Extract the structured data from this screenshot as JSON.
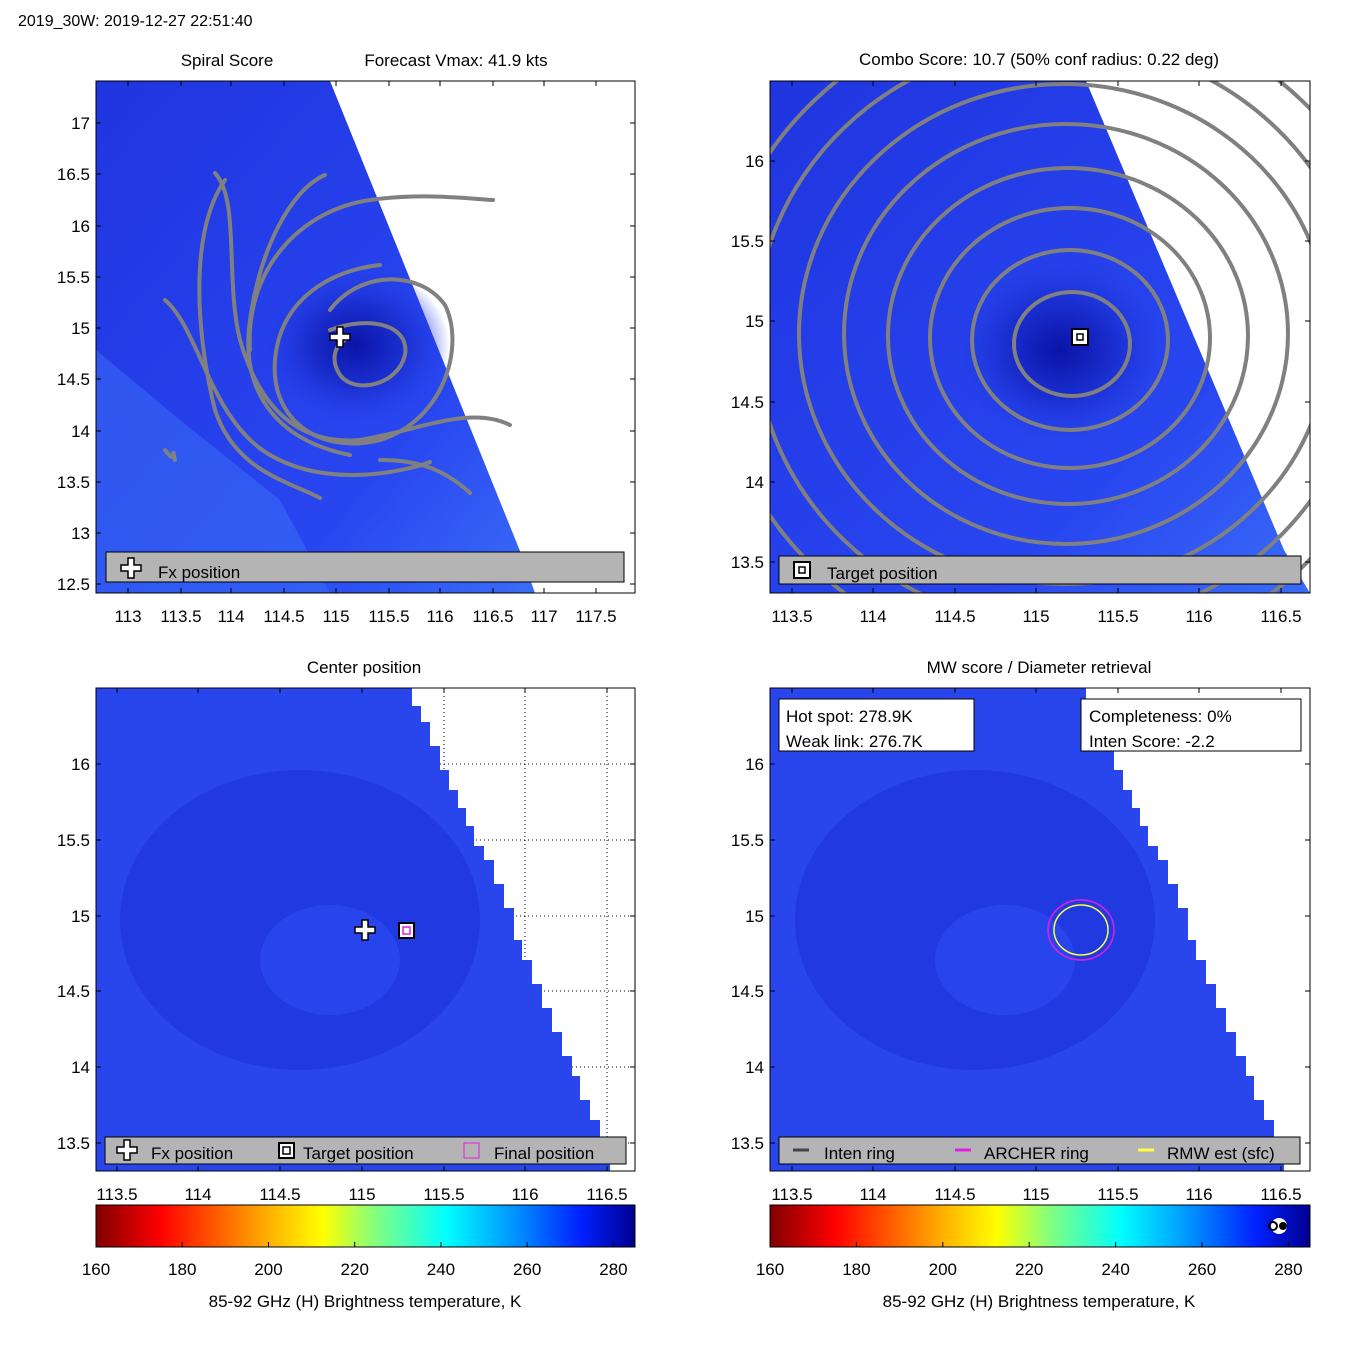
{
  "header": {
    "title": "2019_30W: 2019-12-27 22:51:40"
  },
  "panels": {
    "spiral": {
      "title_left": "Spiral Score",
      "title_right": "Forecast Vmax: 41.9 kts",
      "xticks": [
        "113",
        "113.5",
        "114",
        "114.5",
        "115",
        "115.5",
        "116",
        "116.5",
        "117",
        "117.5"
      ],
      "yticks": [
        "17",
        "16.5",
        "16",
        "15.5",
        "15",
        "14.5",
        "14",
        "13.5",
        "13",
        "12.5"
      ],
      "legend": [
        "Fx position"
      ]
    },
    "combo": {
      "title": "Combo Score: 10.7  (50% conf radius: 0.22 deg)",
      "xticks": [
        "113.5",
        "114",
        "114.5",
        "115",
        "115.5",
        "116",
        "116.5"
      ],
      "yticks": [
        "16",
        "15.5",
        "15",
        "14.5",
        "14",
        "13.5"
      ],
      "legend": [
        "Target position"
      ]
    },
    "center": {
      "title": "Center position",
      "xticks": [
        "113.5",
        "114",
        "114.5",
        "115",
        "115.5",
        "116",
        "116.5"
      ],
      "yticks": [
        "16",
        "15.5",
        "15",
        "14.5",
        "14",
        "13.5"
      ],
      "legend": [
        "Fx position",
        "Target position",
        "Final position"
      ]
    },
    "mw": {
      "title": "MW score / Diameter retrieval",
      "xticks": [
        "113.5",
        "114",
        "114.5",
        "115",
        "115.5",
        "116",
        "116.5"
      ],
      "yticks": [
        "16",
        "15.5",
        "15",
        "14.5",
        "14",
        "13.5"
      ],
      "hot_spot": "Hot spot: 278.9K",
      "weak_link": "Weak link: 276.7K",
      "completeness": "Completeness: 0%",
      "inten_score": "Inten Score: -2.2",
      "legend": [
        "Inten ring",
        "ARCHER ring",
        "RMW est (sfc)"
      ]
    }
  },
  "colorbar": {
    "ticks": [
      "160",
      "180",
      "200",
      "220",
      "240",
      "260",
      "280"
    ],
    "label": "85-92 GHz (H) Brightness temperature, K",
    "range": [
      160,
      285
    ]
  },
  "chart_data": [
    {
      "type": "heatmap",
      "title": "Spiral Score",
      "subtitle": "Forecast Vmax: 41.9 kts",
      "xlim": [
        112.7,
        117.9
      ],
      "ylim": [
        12.4,
        17.4
      ],
      "fx_position": [
        115.02,
        14.92
      ],
      "legend": [
        "Fx position"
      ]
    },
    {
      "type": "heatmap",
      "title": "Combo Score: 10.7  (50% conf radius: 0.22 deg)",
      "xlim": [
        113.35,
        116.65
      ],
      "ylim": [
        13.32,
        16.52
      ],
      "target_position": [
        115.27,
        14.9
      ],
      "legend": [
        "Target position"
      ]
    },
    {
      "type": "heatmap",
      "title": "Center position",
      "xlim": [
        113.35,
        116.65
      ],
      "ylim": [
        13.32,
        16.52
      ],
      "fx_position": [
        115.02,
        14.92
      ],
      "target_position": [
        115.27,
        14.9
      ],
      "final_position": [
        115.27,
        14.9
      ],
      "legend": [
        "Fx position",
        "Target position",
        "Final position"
      ]
    },
    {
      "type": "heatmap",
      "title": "MW score / Diameter retrieval",
      "xlim": [
        113.35,
        116.65
      ],
      "ylim": [
        13.32,
        16.52
      ],
      "hot_spot_K": 278.9,
      "weak_link_K": 276.7,
      "completeness_pct": 0,
      "inten_score": -2.2,
      "legend": [
        "Inten ring",
        "ARCHER ring",
        "RMW est (sfc)"
      ]
    }
  ],
  "colors": {
    "background_blue": "#2440e8",
    "contour": "#808080",
    "archer_ring": "#e020e0",
    "rmw_ring": "#ffff40",
    "legend_bg": "#b4b4b4"
  }
}
